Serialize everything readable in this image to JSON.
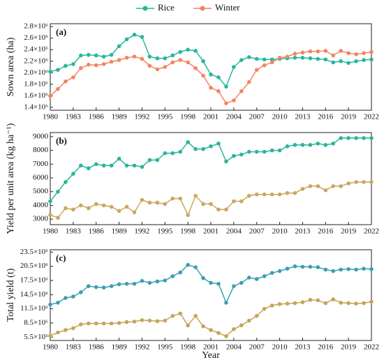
{
  "chart_data": [
    {
      "type": "line",
      "panel_label": "(a)",
      "y_label": "Sown area (ha)",
      "x": [
        1980,
        1981,
        1982,
        1983,
        1984,
        1985,
        1986,
        1987,
        1988,
        1989,
        1990,
        1991,
        1992,
        1993,
        1994,
        1995,
        1996,
        1997,
        1998,
        1999,
        2000,
        2001,
        2002,
        2003,
        2004,
        2005,
        2006,
        2007,
        2008,
        2009,
        2010,
        2011,
        2012,
        2013,
        2014,
        2015,
        2016,
        2017,
        2018,
        2019,
        2020,
        2021,
        2022
      ],
      "series": [
        {
          "name": "Rice",
          "color": "#26b89a",
          "values": [
            2020000,
            2050000,
            2120000,
            2150000,
            2300000,
            2310000,
            2300000,
            2280000,
            2310000,
            2460000,
            2580000,
            2660000,
            2620000,
            2280000,
            2250000,
            2250000,
            2300000,
            2360000,
            2400000,
            2380000,
            2200000,
            1970000,
            1920000,
            1760000,
            2100000,
            2220000,
            2270000,
            2240000,
            2230000,
            2230000,
            2240000,
            2250000,
            2260000,
            2260000,
            2250000,
            2240000,
            2230000,
            2180000,
            2200000,
            2170000,
            2200000,
            2220000,
            2230000
          ]
        },
        {
          "name": "Winter",
          "color": "#f4845f",
          "values": [
            1600000,
            1720000,
            1850000,
            1920000,
            2080000,
            2140000,
            2130000,
            2150000,
            2190000,
            2220000,
            2260000,
            2280000,
            2240000,
            2120000,
            2060000,
            2100000,
            2180000,
            2220000,
            2180000,
            2080000,
            1950000,
            1740000,
            1680000,
            1470000,
            1520000,
            1680000,
            1840000,
            2050000,
            2130000,
            2180000,
            2260000,
            2280000,
            2330000,
            2350000,
            2370000,
            2370000,
            2380000,
            2300000,
            2380000,
            2340000,
            2320000,
            2340000,
            2360000
          ]
        }
      ],
      "xlim": [
        1980,
        2022
      ],
      "xticks": [
        1980,
        1983,
        1986,
        1989,
        1992,
        1995,
        1998,
        2001,
        2004,
        2007,
        2010,
        2013,
        2016,
        2019,
        2022
      ],
      "ylim": [
        1350000,
        2850000
      ],
      "yticks": [
        {
          "value": 1400000,
          "label": "1.4×10⁶"
        },
        {
          "value": 1600000,
          "label": "1.6×10⁶"
        },
        {
          "value": 1800000,
          "label": "1.8×10⁶"
        },
        {
          "value": 2000000,
          "label": "2.0×10⁶"
        },
        {
          "value": 2200000,
          "label": "2.2×10⁶"
        },
        {
          "value": 2400000,
          "label": "2.4×10⁶"
        },
        {
          "value": 2600000,
          "label": "2.6×10⁶"
        },
        {
          "value": 2800000,
          "label": "2.8×10⁶"
        }
      ],
      "legend": "top"
    },
    {
      "type": "line",
      "panel_label": "(b)",
      "y_label": "Yield per unit area (kg ha⁻¹)",
      "x": [
        1980,
        1981,
        1982,
        1983,
        1984,
        1985,
        1986,
        1987,
        1988,
        1989,
        1990,
        1991,
        1992,
        1993,
        1994,
        1995,
        1996,
        1997,
        1998,
        1999,
        2000,
        2001,
        2002,
        2003,
        2004,
        2005,
        2006,
        2007,
        2008,
        2009,
        2010,
        2011,
        2012,
        2013,
        2014,
        2015,
        2016,
        2017,
        2018,
        2019,
        2020,
        2021,
        2022
      ],
      "series": [
        {
          "color": "#2bb59a",
          "values": [
            4300,
            5000,
            5700,
            6300,
            6900,
            6700,
            7000,
            6900,
            6900,
            7400,
            6900,
            6900,
            6800,
            7300,
            7300,
            7800,
            7800,
            7900,
            8600,
            8100,
            8100,
            8300,
            8500,
            7200,
            7600,
            7700,
            7900,
            7900,
            7900,
            8000,
            8000,
            8300,
            8400,
            8400,
            8400,
            8500,
            8400,
            8500,
            8900,
            8900,
            8900,
            8900,
            8900
          ]
        },
        {
          "color": "#c9a85c",
          "values": [
            3300,
            3100,
            3800,
            3700,
            4000,
            3800,
            4100,
            4000,
            3900,
            3600,
            3900,
            3500,
            4400,
            4200,
            4200,
            4100,
            4500,
            4500,
            3300,
            4700,
            4100,
            4100,
            3700,
            3700,
            4300,
            4300,
            4700,
            4800,
            4800,
            4800,
            4800,
            4900,
            4900,
            5200,
            5400,
            5400,
            5100,
            5400,
            5400,
            5600,
            5700,
            5700,
            5700
          ]
        }
      ],
      "xlim": [
        1980,
        2022
      ],
      "xticks": [
        1980,
        1983,
        1986,
        1989,
        1992,
        1995,
        1998,
        2001,
        2004,
        2007,
        2010,
        2013,
        2016,
        2019,
        2022
      ],
      "ylim": [
        2600,
        9300
      ],
      "yticks": [
        3000,
        4000,
        5000,
        6000,
        7000,
        8000,
        9000
      ]
    },
    {
      "type": "line",
      "panel_label": "(c)",
      "y_label": "Total yield (t)",
      "x_label": "Year",
      "x": [
        1980,
        1981,
        1982,
        1983,
        1984,
        1985,
        1986,
        1987,
        1988,
        1989,
        1990,
        1991,
        1992,
        1993,
        1994,
        1995,
        1996,
        1997,
        1998,
        1999,
        2000,
        2001,
        2002,
        2003,
        2004,
        2005,
        2006,
        2007,
        2008,
        2009,
        2010,
        2011,
        2012,
        2013,
        2014,
        2015,
        2016,
        2017,
        2018,
        2019,
        2020,
        2021,
        2022
      ],
      "series": [
        {
          "color": "#3b9fb0",
          "values": [
            12400000,
            12800000,
            13800000,
            14100000,
            15000000,
            16300000,
            16100000,
            16000000,
            16300000,
            16700000,
            16800000,
            16800000,
            17400000,
            17000000,
            17300000,
            17500000,
            18400000,
            19200000,
            20800000,
            20300000,
            18000000,
            17000000,
            16800000,
            12800000,
            16300000,
            17000000,
            18100000,
            17800000,
            18400000,
            19100000,
            19500000,
            20000000,
            20500000,
            20400000,
            20400000,
            20300000,
            19800000,
            19500000,
            19800000,
            19900000,
            19800000,
            20000000,
            19900000
          ]
        },
        {
          "color": "#c4a557",
          "values": [
            5800000,
            6500000,
            7000000,
            7400000,
            8200000,
            8400000,
            8400000,
            8400000,
            8400000,
            8500000,
            8700000,
            8800000,
            9100000,
            9000000,
            8900000,
            9000000,
            10000000,
            10500000,
            8000000,
            10000000,
            7800000,
            7000000,
            6400000,
            5700000,
            7200000,
            8000000,
            9000000,
            10000000,
            11500000,
            12200000,
            12500000,
            12600000,
            12700000,
            12900000,
            13400000,
            13300000,
            12700000,
            13500000,
            12800000,
            12700000,
            12600000,
            12700000,
            13000000
          ]
        }
      ],
      "xlim": [
        1980,
        2022
      ],
      "xticks": [
        1980,
        1983,
        1986,
        1989,
        1992,
        1995,
        1998,
        2001,
        2004,
        2007,
        2010,
        2013,
        2016,
        2019,
        2022
      ],
      "ylim": [
        4800000,
        24000000
      ],
      "yticks": [
        {
          "value": 5500000,
          "label": "5.5×10⁶"
        },
        {
          "value": 8500000,
          "label": "8.5×10⁶"
        },
        {
          "value": 11500000,
          "label": "11.5×10⁶"
        },
        {
          "value": 14500000,
          "label": "14.5×10⁶"
        },
        {
          "value": 17500000,
          "label": "17.5×10⁶"
        },
        {
          "value": 20500000,
          "label": "20.5×10⁶"
        },
        {
          "value": 23500000,
          "label": "23.5×10⁶"
        }
      ]
    }
  ]
}
